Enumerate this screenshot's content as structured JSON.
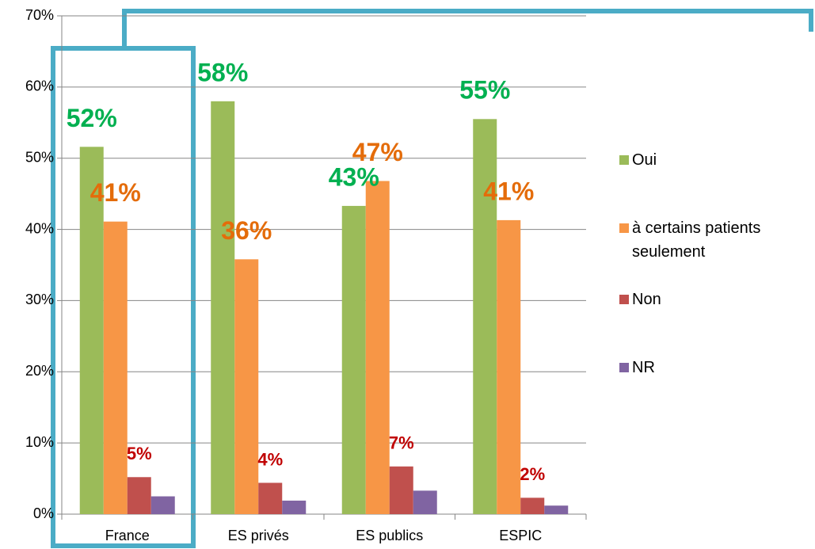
{
  "chart_data": {
    "type": "bar",
    "categories": [
      "France",
      "ES privés",
      "ES publics",
      "ESPIC"
    ],
    "series": [
      {
        "name": "Oui",
        "color": "#9bbb59",
        "label_color": "#00b050",
        "values": [
          51.6,
          58.0,
          43.3,
          55.5
        ],
        "value_labels": [
          "52%",
          "58%",
          "43%",
          "55%"
        ]
      },
      {
        "name": "à certains patients seulement",
        "color": "#f79646",
        "label_color": "#e46c0a",
        "values": [
          41.1,
          35.8,
          46.8,
          41.3
        ],
        "value_labels": [
          "41%",
          "36%",
          "47%",
          "41%"
        ]
      },
      {
        "name": "Non",
        "color": "#c0504d",
        "label_color": "#c00000",
        "values": [
          5.2,
          4.4,
          6.7,
          2.3
        ],
        "value_labels": [
          "5%",
          "4%",
          "7%",
          "2%"
        ]
      },
      {
        "name": "NR",
        "color": "#8064a2",
        "values": [
          2.5,
          1.9,
          3.3,
          1.2
        ]
      }
    ],
    "ylim": [
      0,
      70
    ],
    "yticks": [
      {
        "value": 0,
        "label": "0%"
      },
      {
        "value": 10,
        "label": "10%"
      },
      {
        "value": 20,
        "label": "20%"
      },
      {
        "value": 30,
        "label": "30%"
      },
      {
        "value": 40,
        "label": "40%"
      },
      {
        "value": 50,
        "label": "50%"
      },
      {
        "value": 60,
        "label": "60%"
      },
      {
        "value": 70,
        "label": "70%"
      }
    ],
    "grid": true,
    "legend": "right"
  }
}
